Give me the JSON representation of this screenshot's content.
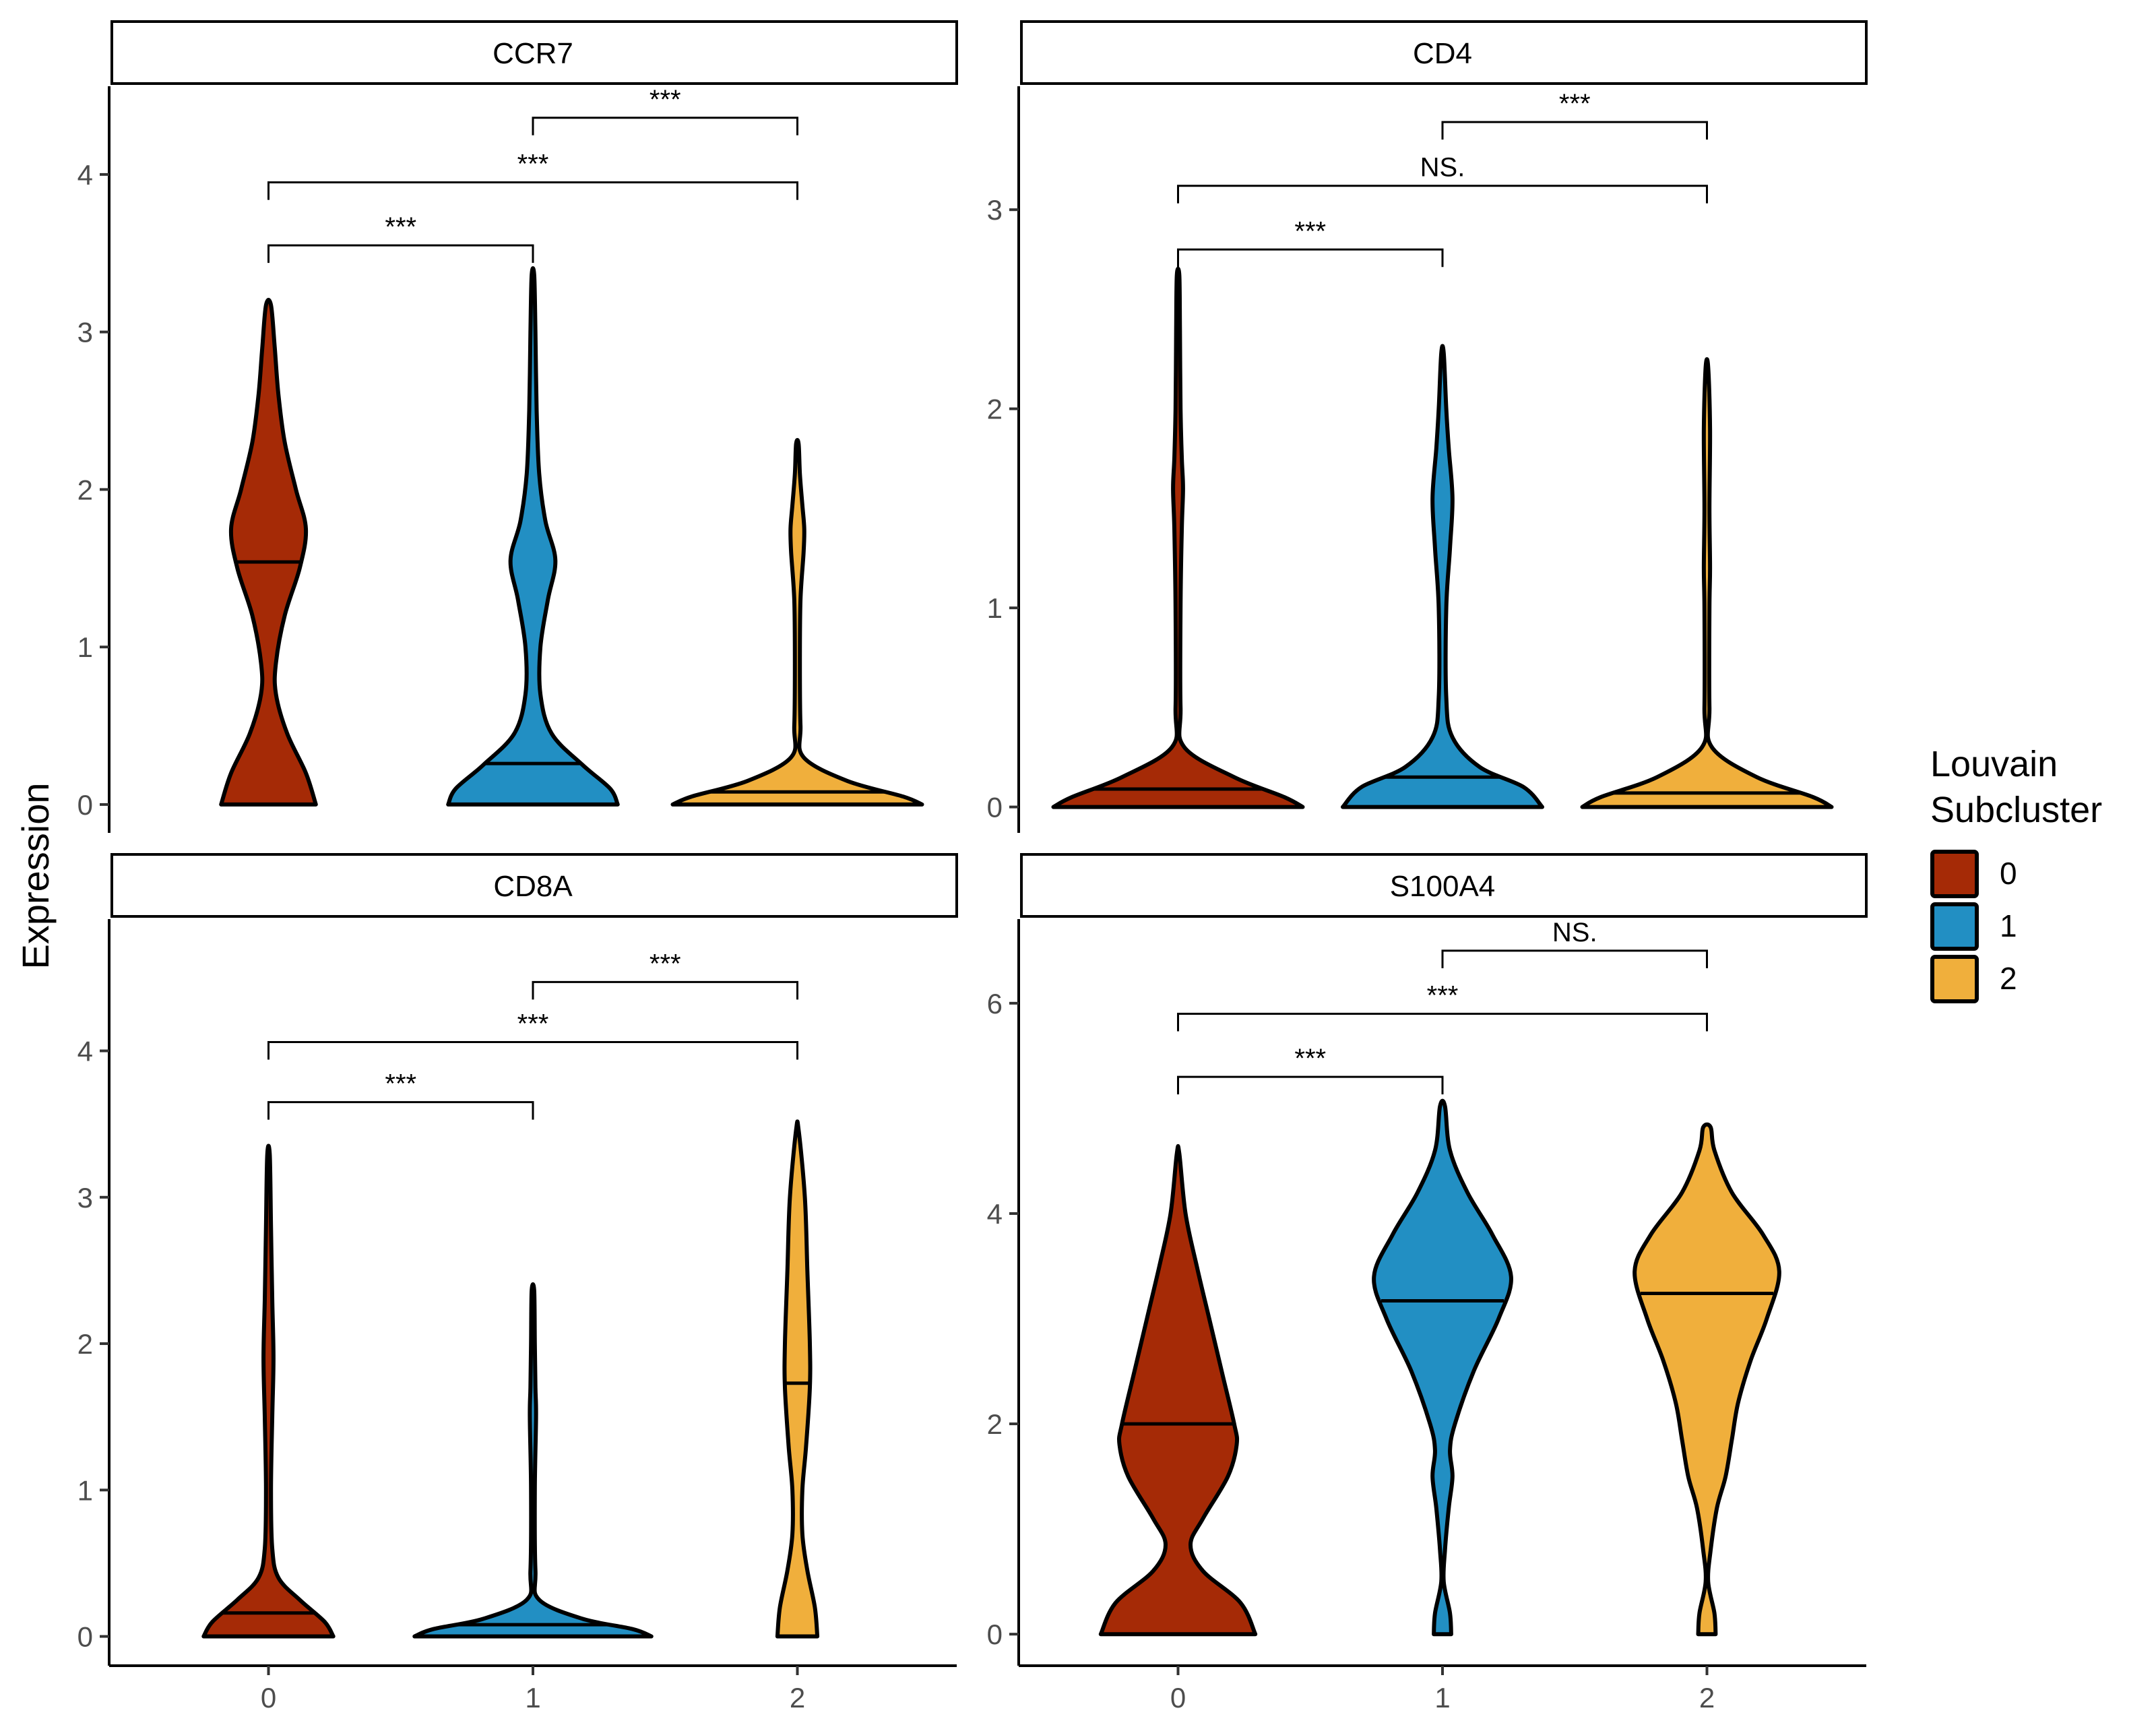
{
  "figure": {
    "y_axis_title": "Expression",
    "legend": {
      "title_line1": "Louvain",
      "title_line2": "Subcluster",
      "entries": [
        {
          "label": "0",
          "color": "#A52A06"
        },
        {
          "label": "1",
          "color": "#228FC3"
        },
        {
          "label": "2",
          "color": "#F0AF3C"
        }
      ],
      "placement": "right"
    }
  },
  "chart_data": [
    {
      "type": "violin",
      "title": "CCR7",
      "categories": [
        "0",
        "1",
        "2"
      ],
      "ylim": [
        -0.18,
        4.56
      ],
      "yticks": [
        0,
        1,
        2,
        3,
        4
      ],
      "xticks_shown": false,
      "medians": [
        1.54,
        0.26,
        0.08
      ],
      "max_values": [
        3.17,
        3.36,
        2.29
      ],
      "density": [
        {
          "y": [
            0,
            0.2,
            0.45,
            0.7,
            0.9,
            1.2,
            1.5,
            1.75,
            2.0,
            2.3,
            2.6,
            2.9,
            3.17
          ],
          "w": [
            0.38,
            0.3,
            0.15,
            0.06,
            0.06,
            0.13,
            0.25,
            0.3,
            0.22,
            0.13,
            0.08,
            0.05,
            0.02
          ]
        },
        {
          "y": [
            0,
            0.1,
            0.25,
            0.45,
            0.7,
            1.0,
            1.3,
            1.55,
            1.8,
            2.1,
            2.5,
            3.0,
            3.36
          ],
          "w": [
            0.68,
            0.62,
            0.4,
            0.15,
            0.06,
            0.06,
            0.12,
            0.18,
            0.1,
            0.05,
            0.03,
            0.02,
            0.01
          ]
        },
        {
          "y": [
            0,
            0.05,
            0.15,
            0.3,
            0.5,
            0.9,
            1.3,
            1.6,
            1.75,
            1.9,
            2.1,
            2.29
          ],
          "w": [
            1.0,
            0.85,
            0.4,
            0.05,
            0.025,
            0.02,
            0.025,
            0.05,
            0.055,
            0.04,
            0.02,
            0.01
          ]
        }
      ],
      "comparisons": [
        {
          "from": "0",
          "to": "1",
          "label": "***",
          "y": 3.55
        },
        {
          "from": "0",
          "to": "2",
          "label": "***",
          "y": 3.95
        },
        {
          "from": "1",
          "to": "2",
          "label": "***",
          "y": 4.36
        }
      ]
    },
    {
      "type": "violin",
      "title": "CD4",
      "categories": [
        "0",
        "1",
        "2"
      ],
      "ylim": [
        -0.13,
        3.62
      ],
      "yticks": [
        0,
        1,
        2,
        3
      ],
      "xticks_shown": false,
      "medians": [
        0.09,
        0.15,
        0.07
      ],
      "max_values": [
        2.67,
        2.28,
        2.21
      ],
      "density": [
        {
          "y": [
            0,
            0.05,
            0.15,
            0.3,
            0.5,
            1.0,
            1.4,
            1.6,
            1.75,
            2.0,
            2.4,
            2.67
          ],
          "w": [
            1.0,
            0.85,
            0.45,
            0.05,
            0.02,
            0.02,
            0.03,
            0.04,
            0.03,
            0.02,
            0.015,
            0.01
          ]
        },
        {
          "y": [
            0,
            0.1,
            0.2,
            0.35,
            0.55,
            1.0,
            1.3,
            1.55,
            1.8,
            2.0,
            2.28
          ],
          "w": [
            0.8,
            0.65,
            0.3,
            0.08,
            0.03,
            0.03,
            0.06,
            0.08,
            0.05,
            0.03,
            0.01
          ]
        },
        {
          "y": [
            0,
            0.05,
            0.15,
            0.3,
            0.5,
            1.0,
            1.2,
            1.5,
            1.9,
            2.21
          ],
          "w": [
            1.0,
            0.85,
            0.4,
            0.04,
            0.02,
            0.02,
            0.025,
            0.02,
            0.025,
            0.01
          ]
        }
      ],
      "comparisons": [
        {
          "from": "0",
          "to": "1",
          "label": "***",
          "y": 2.8
        },
        {
          "from": "0",
          "to": "2",
          "label": "NS.",
          "y": 3.12
        },
        {
          "from": "1",
          "to": "2",
          "label": "***",
          "y": 3.44
        }
      ]
    },
    {
      "type": "violin",
      "title": "CD8A",
      "categories": [
        "0",
        "1",
        "2"
      ],
      "ylim": [
        -0.2,
        4.9
      ],
      "yticks": [
        0,
        1,
        2,
        3,
        4
      ],
      "xticks_shown": true,
      "medians": [
        0.16,
        0.08,
        1.73
      ],
      "max_values": [
        3.29,
        2.36,
        3.46
      ],
      "density": [
        {
          "y": [
            0,
            0.1,
            0.25,
            0.4,
            0.6,
            1.0,
            1.5,
            1.9,
            2.3,
            2.8,
            3.29
          ],
          "w": [
            0.52,
            0.45,
            0.25,
            0.08,
            0.03,
            0.02,
            0.03,
            0.04,
            0.03,
            0.02,
            0.01
          ]
        },
        {
          "y": [
            0,
            0.05,
            0.12,
            0.25,
            0.45,
            1.0,
            1.5,
            1.7,
            2.0,
            2.36
          ],
          "w": [
            0.95,
            0.8,
            0.4,
            0.05,
            0.02,
            0.015,
            0.025,
            0.02,
            0.015,
            0.01
          ]
        },
        {
          "y": [
            0,
            0.2,
            0.45,
            0.7,
            1.0,
            1.3,
            1.7,
            2.0,
            2.5,
            3.0,
            3.46
          ],
          "w": [
            0.16,
            0.14,
            0.08,
            0.04,
            0.04,
            0.07,
            0.1,
            0.1,
            0.08,
            0.06,
            0.01
          ]
        }
      ],
      "comparisons": [
        {
          "from": "0",
          "to": "1",
          "label": "***",
          "y": 3.65
        },
        {
          "from": "0",
          "to": "2",
          "label": "***",
          "y": 4.06
        },
        {
          "from": "1",
          "to": "2",
          "label": "***",
          "y": 4.47
        }
      ]
    },
    {
      "type": "violin",
      "title": "S100A4",
      "categories": [
        "0",
        "1",
        "2"
      ],
      "ylim": [
        -0.3,
        6.8
      ],
      "yticks": [
        0,
        2,
        4,
        6
      ],
      "xticks_shown": true,
      "medians": [
        2.0,
        3.17,
        3.24
      ],
      "max_values": [
        4.57,
        5.02,
        4.82
      ],
      "density": [
        {
          "y": [
            0,
            0.3,
            0.6,
            0.85,
            1.1,
            1.5,
            1.8,
            2.0,
            2.5,
            3.0,
            3.5,
            4.0,
            4.57
          ],
          "w": [
            0.62,
            0.5,
            0.2,
            0.1,
            0.2,
            0.4,
            0.47,
            0.45,
            0.35,
            0.25,
            0.15,
            0.06,
            0.01
          ]
        },
        {
          "y": [
            0,
            0.2,
            0.5,
            0.8,
            1.2,
            1.5,
            1.75,
            2.0,
            2.5,
            3.0,
            3.4,
            3.8,
            4.2,
            4.6,
            5.02
          ],
          "w": [
            0.07,
            0.06,
            0.01,
            0.02,
            0.05,
            0.08,
            0.06,
            0.1,
            0.25,
            0.45,
            0.55,
            0.4,
            0.2,
            0.06,
            0.02
          ]
        },
        {
          "y": [
            0,
            0.2,
            0.5,
            0.8,
            1.2,
            1.5,
            1.85,
            2.2,
            2.6,
            3.0,
            3.45,
            3.8,
            4.2,
            4.6,
            4.82
          ],
          "w": [
            0.07,
            0.06,
            0.01,
            0.03,
            0.08,
            0.15,
            0.2,
            0.25,
            0.35,
            0.48,
            0.58,
            0.45,
            0.2,
            0.06,
            0.03
          ]
        }
      ],
      "comparisons": [
        {
          "from": "0",
          "to": "1",
          "label": "***",
          "y": 5.3
        },
        {
          "from": "0",
          "to": "2",
          "label": "***",
          "y": 5.9
        },
        {
          "from": "1",
          "to": "2",
          "label": "NS.",
          "y": 6.5
        }
      ]
    }
  ]
}
